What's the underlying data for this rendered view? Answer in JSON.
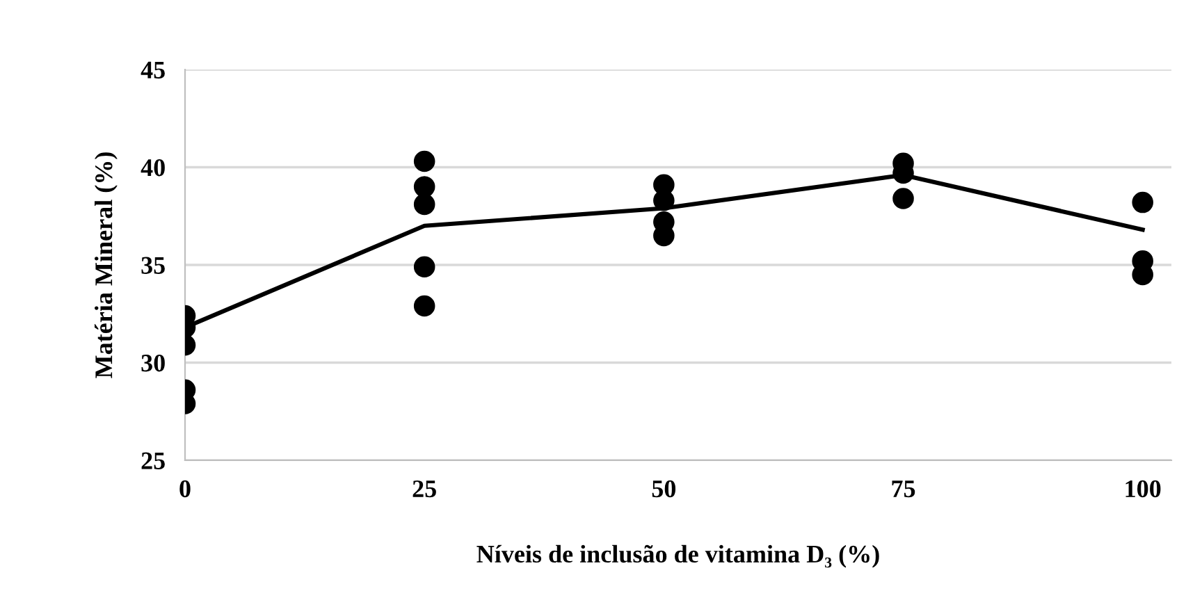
{
  "chart_data": {
    "type": "scatter",
    "xlabel": "Níveis de inclusão de vitamina D₃ (%)",
    "ylabel": "Matéria Mineral (%)",
    "xlim": [
      0,
      103
    ],
    "xticks": [
      0,
      25,
      50,
      75,
      100
    ],
    "ylim": [
      25,
      45
    ],
    "yticks": [
      25,
      30,
      35,
      40,
      45
    ],
    "grid": "y",
    "marker": "circle",
    "series": [
      {
        "color": "#000000",
        "x": [
          0,
          0,
          0,
          0,
          0,
          25,
          25,
          25,
          25,
          25,
          50,
          50,
          50,
          50,
          75,
          75,
          75,
          100,
          100,
          100
        ],
        "values": [
          32.4,
          31.8,
          30.9,
          28.6,
          27.9,
          40.3,
          39.0,
          38.1,
          34.9,
          32.9,
          39.1,
          38.3,
          37.2,
          36.5,
          40.2,
          39.7,
          38.4,
          38.2,
          35.2,
          34.5
        ]
      },
      {
        "type": "line",
        "color": "#000000",
        "x": [
          0,
          25,
          50,
          75,
          100
        ],
        "values": [
          31.8,
          37.0,
          37.9,
          39.6,
          36.8
        ],
        "marker": "none",
        "line_style": "solid"
      }
    ]
  }
}
